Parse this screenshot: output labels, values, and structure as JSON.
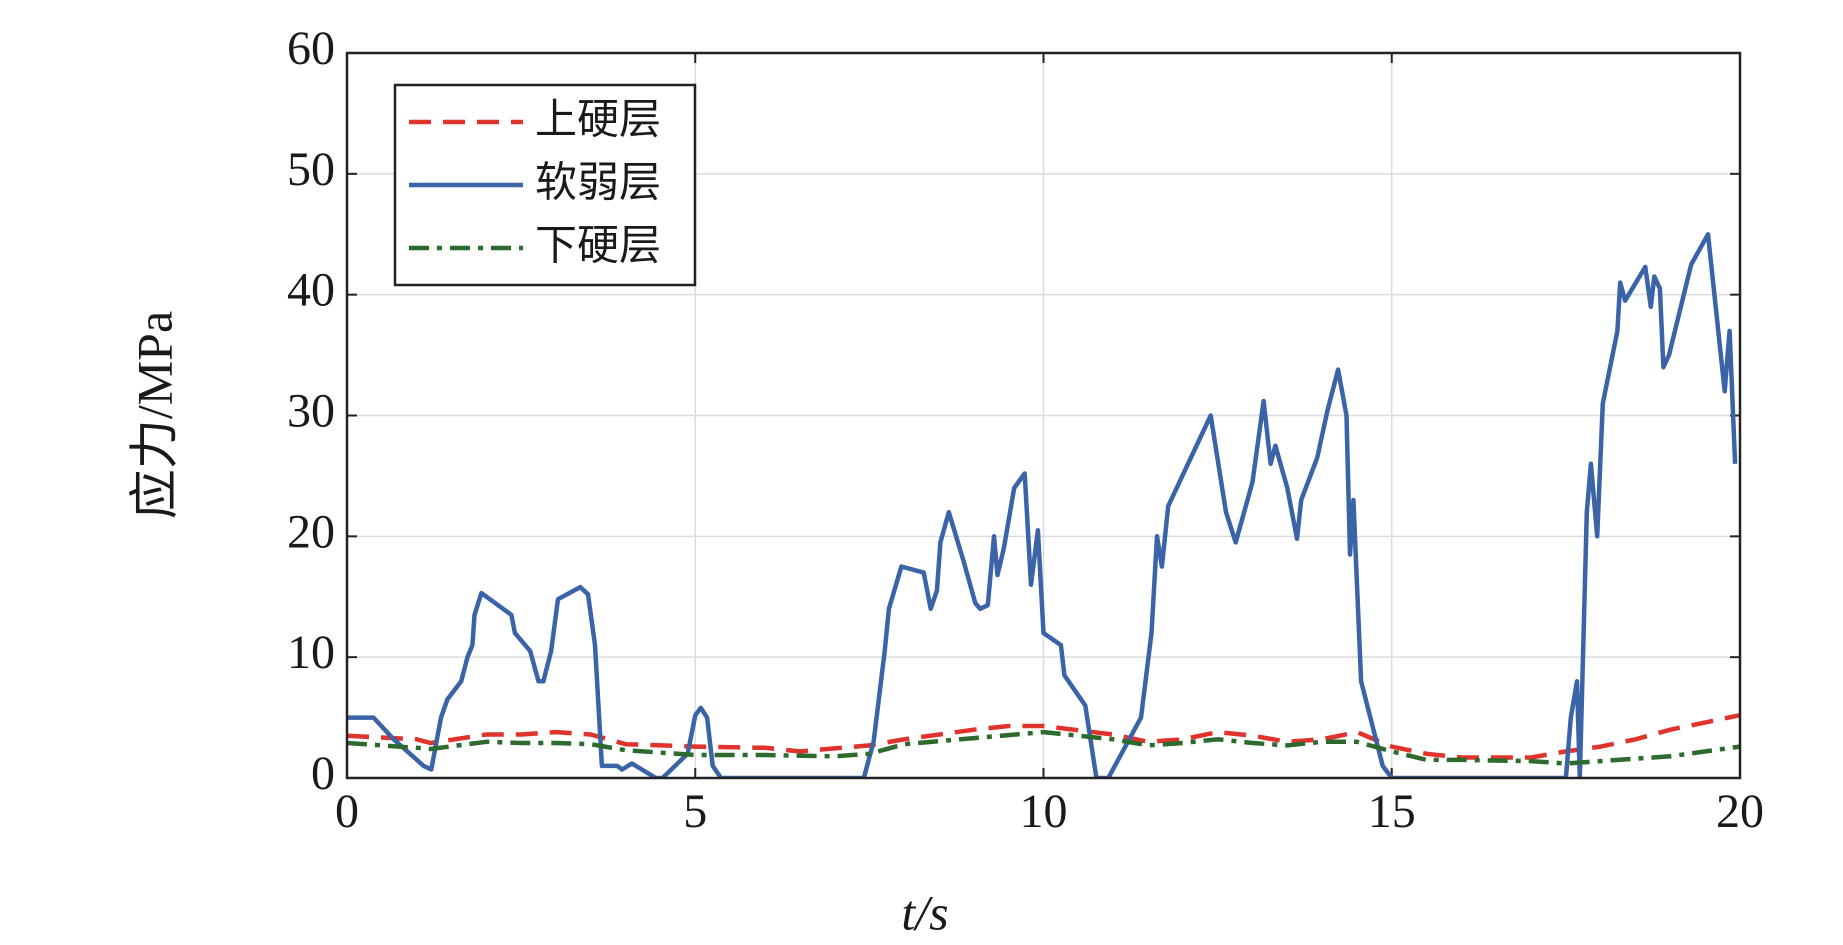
{
  "chart_data": {
    "type": "line",
    "xlabel": "t/s",
    "ylabel": "应力/MPa",
    "xlim": [
      0,
      20
    ],
    "xticks": [
      0,
      5,
      10,
      15,
      20
    ],
    "ylim": [
      0,
      60
    ],
    "yticks": [
      0,
      10,
      20,
      30,
      40,
      50,
      60
    ],
    "grid": true,
    "legend": "upper left",
    "series": [
      {
        "name": "上硬层",
        "color": "#e0332b",
        "dash": "dashed",
        "x": [
          0,
          1,
          1.2,
          2,
          2.5,
          3,
          3.5,
          4,
          5,
          6,
          6.5,
          7.5,
          8,
          9,
          9.5,
          10,
          11,
          11.5,
          12,
          12.5,
          13,
          13.5,
          14,
          14.5,
          15,
          15.5,
          16,
          17,
          17.5,
          18,
          18.5,
          19,
          20
        ],
        "values": [
          3.5,
          3.2,
          2.9,
          3.6,
          3.6,
          3.8,
          3.6,
          2.8,
          2.6,
          2.5,
          2.2,
          2.7,
          3.2,
          4.0,
          4.3,
          4.3,
          3.6,
          3.0,
          3.2,
          3.8,
          3.5,
          3.0,
          3.2,
          3.8,
          2.6,
          2.0,
          1.7,
          1.7,
          2.2,
          2.6,
          3.2,
          4.0,
          5.2
        ]
      },
      {
        "name": "软弱层",
        "color": "#3a63a8",
        "dash": "solid",
        "x": [
          0,
          0.38,
          0.67,
          1.1,
          1.21,
          1.35,
          1.44,
          1.64,
          1.73,
          1.8,
          1.83,
          1.93,
          2.36,
          2.41,
          2.63,
          2.75,
          2.82,
          2.93,
          3.03,
          3.35,
          3.46,
          3.56,
          3.66,
          3.88,
          3.95,
          4.09,
          4.35,
          4.43,
          4.53,
          4.89,
          5.0,
          5.08,
          5.17,
          5.25,
          5.37,
          7.42,
          7.56,
          7.72,
          7.78,
          7.96,
          8.28,
          8.38,
          8.47,
          8.52,
          8.64,
          8.85,
          9.02,
          9.09,
          9.2,
          9.29,
          9.34,
          9.43,
          9.58,
          9.73,
          9.82,
          9.92,
          10.0,
          10.25,
          10.3,
          10.6,
          10.76,
          10.93,
          11.4,
          11.55,
          11.63,
          11.7,
          11.79,
          12.4,
          12.62,
          12.76,
          13.0,
          13.16,
          13.26,
          13.33,
          13.5,
          13.64,
          13.7,
          13.93,
          14.08,
          14.23,
          14.35,
          14.4,
          14.45,
          14.56,
          14.87,
          15.0,
          17.5,
          17.57,
          17.66,
          17.7,
          17.8,
          17.86,
          17.95,
          18.03,
          18.24,
          18.28,
          18.35,
          18.64,
          18.72,
          18.77,
          18.85,
          18.9,
          18.98,
          19.3,
          19.54,
          19.78,
          19.85,
          19.93
        ],
        "values": [
          5,
          5,
          3.2,
          1,
          0.7,
          5,
          6.5,
          8,
          10,
          11,
          13.5,
          15.3,
          13.5,
          12,
          10.5,
          8,
          8,
          10.5,
          14.8,
          15.8,
          15.2,
          11,
          1,
          1,
          0.7,
          1.2,
          0.3,
          0,
          0,
          2,
          5.2,
          5.8,
          5,
          1,
          0,
          0,
          3,
          10.5,
          14,
          17.5,
          17,
          14,
          15.5,
          19.5,
          22,
          18,
          14.5,
          14,
          14.3,
          20,
          16.8,
          19,
          24,
          25.2,
          16,
          20.5,
          12,
          11,
          8.5,
          6,
          0,
          0,
          5,
          12,
          20,
          17.5,
          22.5,
          30,
          22,
          19.5,
          24.5,
          31.2,
          26,
          27.5,
          24,
          19.8,
          23,
          26.5,
          30.5,
          33.8,
          30,
          18.5,
          23,
          8,
          1,
          0,
          0,
          5,
          8,
          0,
          22,
          26,
          20,
          31,
          37,
          41,
          39.5,
          42.3,
          39,
          41.5,
          40.5,
          34,
          35,
          42.5,
          45,
          32,
          37,
          26
        ]
      },
      {
        "name": "下硬层",
        "color": "#2d6a2e",
        "dash": "dashdot",
        "x": [
          0,
          1,
          1.2,
          2,
          2.5,
          3,
          3.5,
          4,
          5,
          6,
          7,
          7.5,
          8,
          9,
          10,
          11,
          11.5,
          12,
          12.5,
          13,
          13.5,
          14,
          14.5,
          15,
          15.5,
          16,
          17,
          17.5,
          18,
          19,
          20
        ],
        "values": [
          2.9,
          2.5,
          2.4,
          3.0,
          2.9,
          2.9,
          2.8,
          2.3,
          1.9,
          1.9,
          1.8,
          2.0,
          2.8,
          3.3,
          3.8,
          3.2,
          2.7,
          2.9,
          3.2,
          2.9,
          2.7,
          3.0,
          3.0,
          2.2,
          1.5,
          1.5,
          1.4,
          1.2,
          1.4,
          1.8,
          2.6
        ]
      }
    ]
  }
}
